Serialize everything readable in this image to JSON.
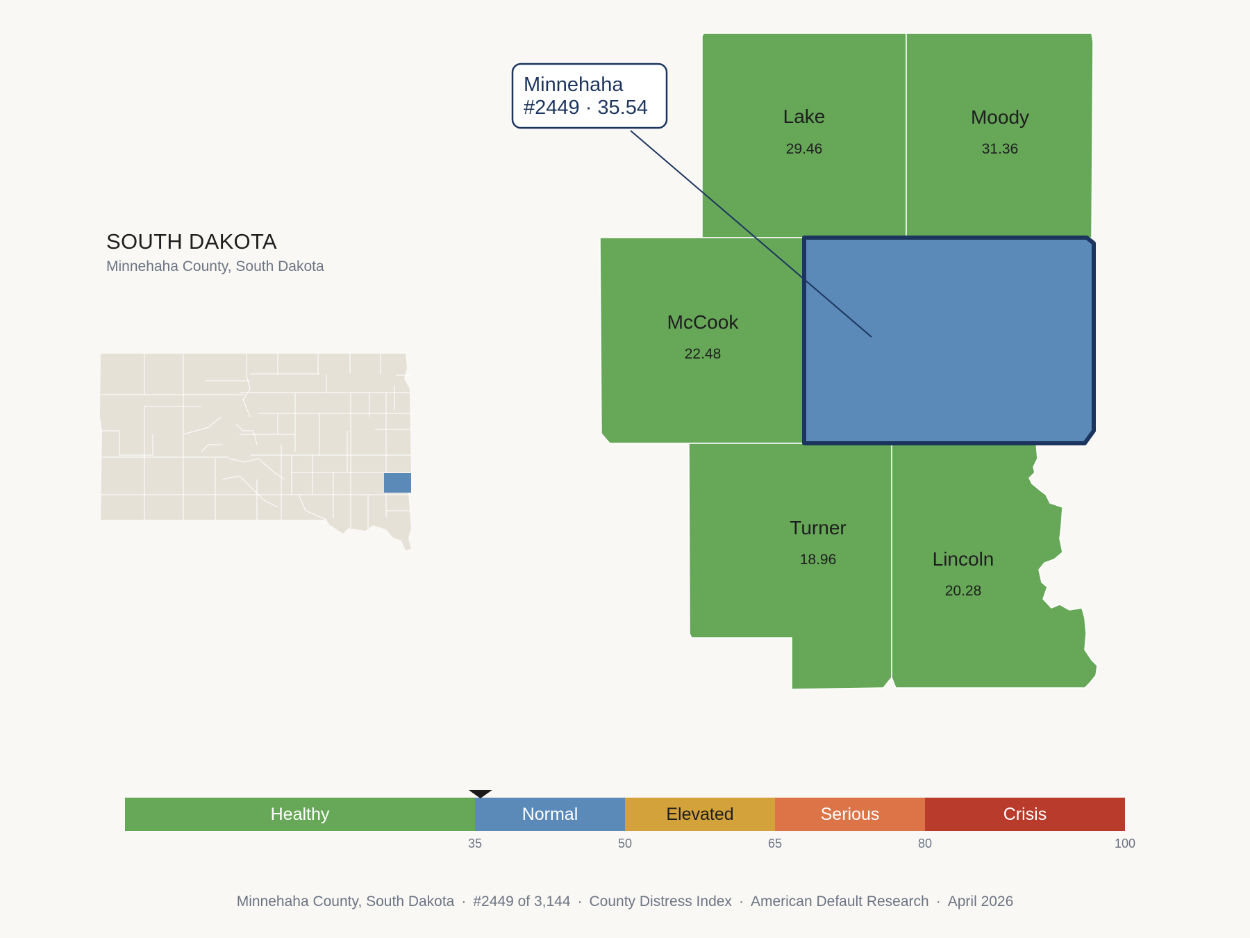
{
  "header": {
    "state_title": "SOUTH DAKOTA",
    "subtitle": "Minnehaha County, South Dakota"
  },
  "colors": {
    "background": "#f9f8f5",
    "healthy": "#66a758",
    "normal": "#5b89b8",
    "elevated": "#d3a23a",
    "serious": "#dc7447",
    "crisis": "#b83b2b",
    "selected_outline": "#1c355e",
    "inset_state_fill": "#e6e1d7"
  },
  "selected_county": {
    "name": "Minnehaha",
    "rank_label": "#2449 · 35.54",
    "score": 35.54
  },
  "callout": {
    "line1": "Minnehaha",
    "line2": "#2449 · 35.54"
  },
  "neighbors": [
    {
      "name": "Lake",
      "value": "29.46"
    },
    {
      "name": "Moody",
      "value": "31.36"
    },
    {
      "name": "McCook",
      "value": "22.48"
    },
    {
      "name": "Turner",
      "value": "18.96"
    },
    {
      "name": "Lincoln",
      "value": "20.28"
    }
  ],
  "scale": {
    "segments": [
      {
        "label": "Healthy",
        "from": 0,
        "to": 35
      },
      {
        "label": "Normal",
        "from": 35,
        "to": 50
      },
      {
        "label": "Elevated",
        "from": 50,
        "to": 65
      },
      {
        "label": "Serious",
        "from": 65,
        "to": 80
      },
      {
        "label": "Crisis",
        "from": 80,
        "to": 100
      }
    ],
    "ticks": [
      "35",
      "50",
      "65",
      "80",
      "100"
    ],
    "marker_value": 35.54
  },
  "footer": {
    "county": "Minnehaha County, South Dakota",
    "rank": "#2449 of 3,144",
    "index": "County Distress Index",
    "source": "American Default Research",
    "date": "April 2026"
  }
}
